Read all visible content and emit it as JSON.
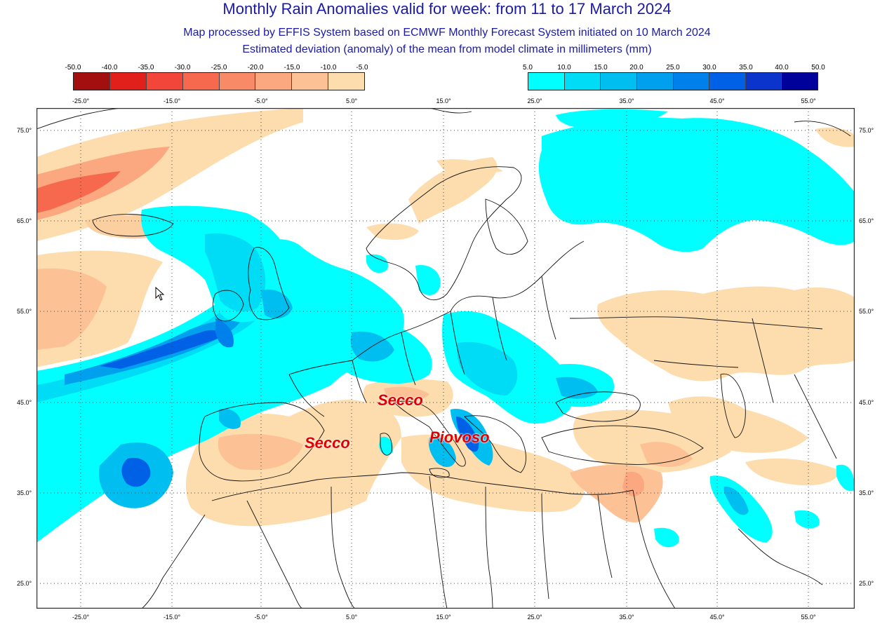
{
  "titles": {
    "main": "Monthly Rain Anomalies valid for week: from 11 to 17 March 2024",
    "line2": "Map processed by EFFIS System based on ECMWF Monthly Forecast System initiated on 10 March 2024",
    "line3": "Estimated deviation (anomaly) of the mean from model climate in millimeters (mm)"
  },
  "legend_dry": {
    "labels": [
      "-50.0",
      "-40.0",
      "-35.0",
      "-30.0",
      "-25.0",
      "-20.0",
      "-15.0",
      "-10.0",
      "-5.0"
    ],
    "colors": [
      "#a30e0e",
      "#e1201c",
      "#f3463a",
      "#f6694f",
      "#f88a67",
      "#fba77f",
      "#fcc296",
      "#fddcae"
    ]
  },
  "legend_wet": {
    "labels": [
      "5.0",
      "10.0",
      "15.0",
      "20.0",
      "25.0",
      "30.0",
      "35.0",
      "40.0",
      "50.0"
    ],
    "colors": [
      "#00ffff",
      "#00dcf6",
      "#00bff0",
      "#00a0ee",
      "#0080ea",
      "#0060e6",
      "#0a34cc",
      "#00009a"
    ]
  },
  "axes": {
    "top_ticks": [
      "-25.0°",
      "-15.0°",
      "-5.0°",
      "5.0°",
      "15.0°",
      "25.0°",
      "35.0°",
      "45.0°",
      "55.0°"
    ],
    "bottom_ticks": [
      "-25.0°",
      "-15.0°",
      "-5.0°",
      "5.0°",
      "15.0°",
      "25.0°",
      "35.0°",
      "45.0°",
      "55.0°"
    ],
    "left_ticks": [
      "75.0°",
      "65.0°",
      "55.0°",
      "45.0°",
      "35.0°",
      "25.0°"
    ],
    "right_ticks": [
      "75.0°",
      "65.0°",
      "55.0°",
      "45.0°",
      "35.0°",
      "25.0°"
    ]
  },
  "annotations": {
    "secco_north": "Secco",
    "secco_spain": "Secco",
    "piovoso": "Piovoso"
  },
  "colors": {
    "title": "#1a1aa6",
    "annotation": "#e00000",
    "coast": "#111111"
  }
}
